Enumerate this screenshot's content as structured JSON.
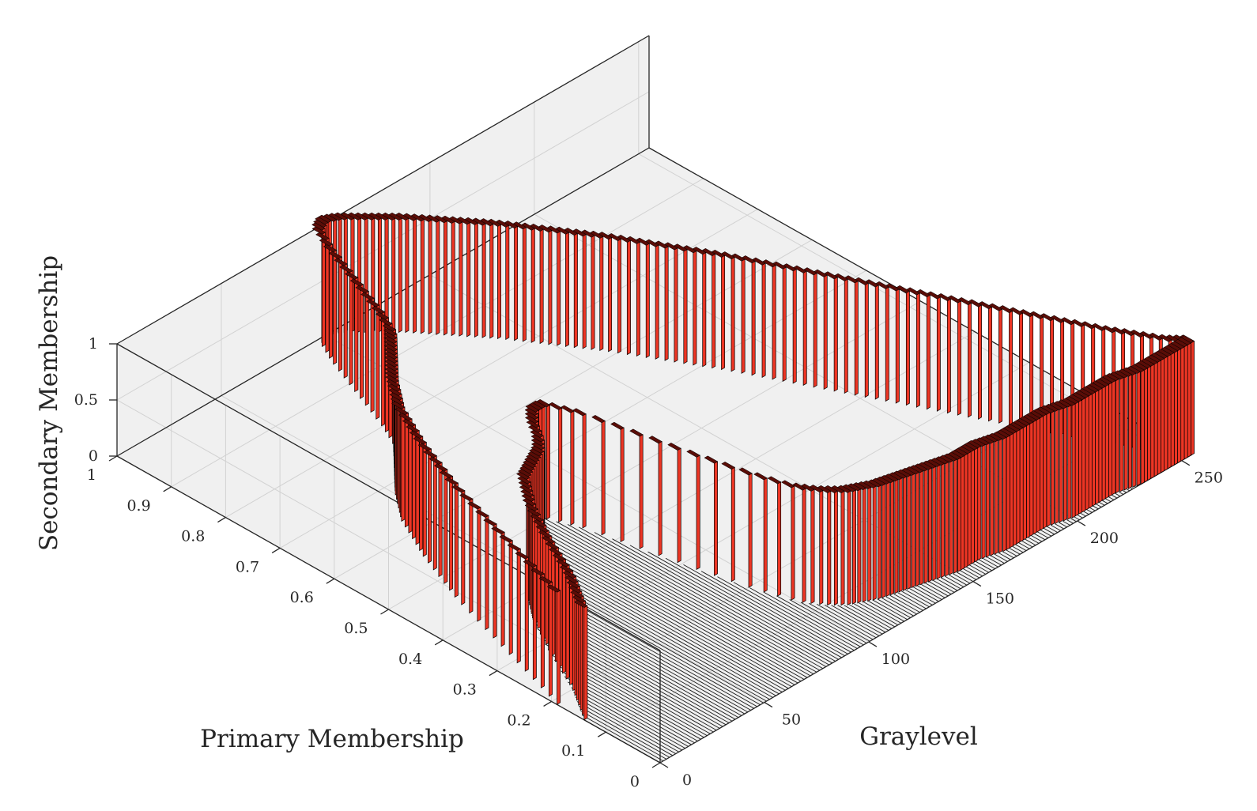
{
  "chart_data": {
    "type": "3d-bar",
    "xlabel": "Graylevel",
    "ylabel": "Primary Membership",
    "zlabel": "Secondary Membership",
    "xlim": [
      0,
      255
    ],
    "ylim": [
      0,
      1
    ],
    "zlim": [
      0,
      1
    ],
    "x_ticks": [
      "0",
      "50",
      "100",
      "150",
      "200",
      "250"
    ],
    "y_ticks": [
      "0",
      "0.1",
      "0.2",
      "0.3",
      "0.4",
      "0.5",
      "0.6",
      "0.7",
      "0.8",
      "0.9",
      "1"
    ],
    "z_ticks": [
      "0",
      "0.5",
      "1"
    ],
    "grid": true,
    "colors": {
      "bar_face": "#ec3524",
      "bar_top": "#5a0d07",
      "bar_edge": "#000000",
      "floor_bars": "#1a1a1a",
      "pane": "#f0f0f0",
      "grid": "#d2d2d2"
    },
    "series": [
      {
        "upper": {
          "x": [
            0,
            10,
            20,
            30,
            40,
            50,
            55,
            60,
            65,
            70,
            75,
            80,
            85,
            90,
            95,
            100,
            105,
            110,
            115,
            120,
            130,
            140,
            150,
            160,
            170,
            180,
            190,
            200,
            210,
            220,
            230,
            240,
            250,
            255
          ],
          "y": [
            0.19,
            0.32,
            0.45,
            0.55,
            0.63,
            0.68,
            0.7,
            0.72,
            0.74,
            0.76,
            0.8,
            0.85,
            0.9,
            0.95,
            0.99,
            1.0,
            0.99,
            0.97,
            0.95,
            0.93,
            0.88,
            0.83,
            0.77,
            0.71,
            0.64,
            0.57,
            0.49,
            0.41,
            0.33,
            0.25,
            0.17,
            0.09,
            0.02,
            0.0
          ]
        },
        "lower": {
          "x": [
            0,
            10,
            20,
            30,
            40,
            50,
            55,
            60,
            65,
            70,
            75,
            80,
            85,
            90,
            95,
            100,
            105,
            110,
            115,
            120,
            130,
            140,
            150,
            160,
            170,
            180,
            190,
            200,
            210,
            220,
            230,
            240,
            250,
            255
          ],
          "y": [
            0.14,
            0.2,
            0.28,
            0.35,
            0.4,
            0.42,
            0.43,
            0.45,
            0.48,
            0.5,
            0.5,
            0.45,
            0.36,
            0.27,
            0.19,
            0.13,
            0.1,
            0.08,
            0.07,
            0.06,
            0.05,
            0.04,
            0.03,
            0.03,
            0.02,
            0.02,
            0.02,
            0.01,
            0.01,
            0.01,
            0.0,
            0.0,
            0.0,
            0.0
          ]
        },
        "secondary_membership": 1
      }
    ]
  }
}
